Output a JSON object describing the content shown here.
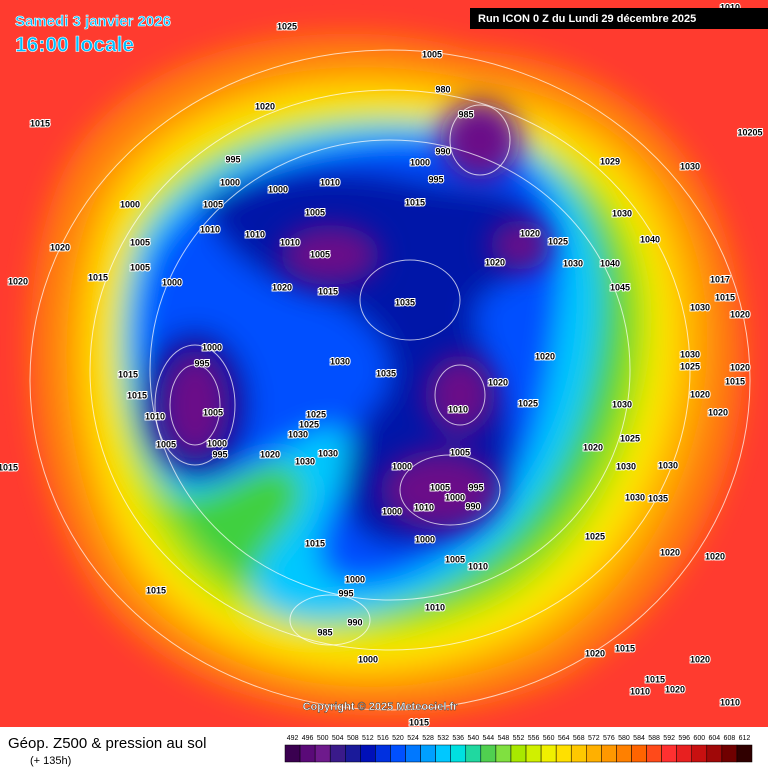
{
  "header": {
    "date": "Samedi 3 janvier 2026",
    "time": "16:00 locale",
    "run": "Run ICON 0 Z du Lundi 29 décembre 2025"
  },
  "map": {
    "copyright": "Copyright © 2025 Meteociel.fr",
    "isobar_labels": [
      1025,
      1005,
      980,
      985,
      1020,
      1015,
      995,
      990,
      1000,
      995,
      1000,
      1010,
      1000,
      1015,
      1005,
      1000,
      1005,
      1020,
      1025,
      1030,
      1030,
      1029,
      10205,
      1020,
      1005,
      1010,
      1010,
      1010,
      1005,
      1020,
      1030,
      1040,
      1040,
      1045,
      1015,
      1020,
      1035,
      1000,
      1005,
      1015,
      1020,
      1017,
      1015,
      1030,
      1020,
      1000,
      995,
      1030,
      1020,
      1015,
      1015,
      1035,
      1020,
      1025,
      1010,
      1005,
      1010,
      1025,
      1025,
      1030,
      1030,
      1025,
      1020,
      1015,
      1020,
      1020,
      1030,
      1005,
      1000,
      995,
      1020,
      1030,
      1030,
      1015,
      1000,
      1005,
      1005,
      995,
      1000,
      990,
      1010,
      1000,
      1020,
      1030,
      1030,
      1025,
      1035,
      1030,
      1000,
      1015,
      1025,
      1005,
      1010,
      1020,
      1020,
      1000,
      995,
      1015,
      990,
      985,
      1010,
      1000,
      1020,
      1015,
      1020,
      1015,
      1010,
      1020,
      1010,
      1015,
      1010
    ]
  },
  "footer": {
    "title": "Géop. Z500 & pression au sol",
    "lead": "(+ 135h)",
    "scale": {
      "values": [
        492,
        496,
        500,
        504,
        508,
        512,
        516,
        520,
        524,
        528,
        532,
        536,
        540,
        544,
        548,
        552,
        556,
        560,
        564,
        568,
        572,
        576,
        580,
        584,
        588,
        592,
        596,
        600,
        604,
        608,
        612
      ],
      "colors": [
        "#3a0050",
        "#5a0a78",
        "#6e1a8c",
        "#3a1a8a",
        "#1a1a9a",
        "#0010b8",
        "#0030e0",
        "#0050ff",
        "#0078ff",
        "#00a0ff",
        "#00c8ff",
        "#00e0e0",
        "#20d8a0",
        "#50d050",
        "#80e040",
        "#a8e800",
        "#d0f000",
        "#f0f000",
        "#ffe000",
        "#ffc800",
        "#ffb000",
        "#ff9800",
        "#ff8000",
        "#ff6400",
        "#ff4a1a",
        "#ff3030",
        "#e82020",
        "#c81010",
        "#a00808",
        "#700000",
        "#300000"
      ]
    }
  }
}
